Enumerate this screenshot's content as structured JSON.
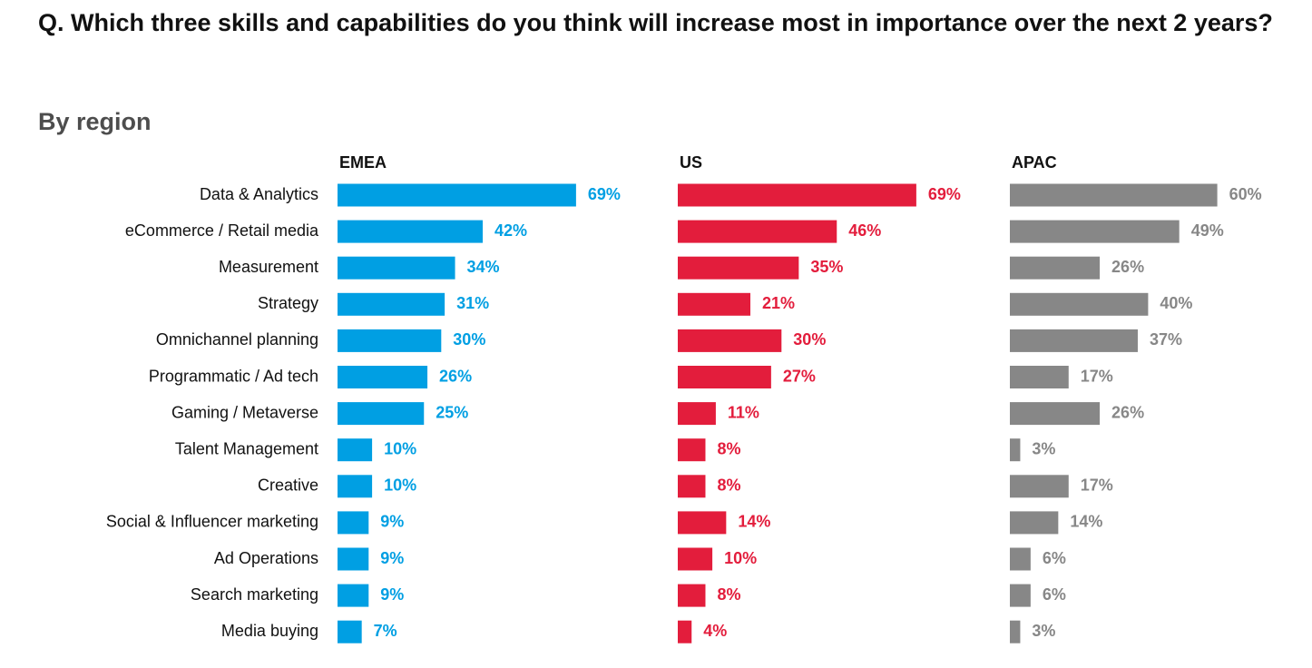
{
  "question": "Q. Which three skills and capabilities do you think will increase most in importance over the next 2 years?",
  "subtitle": "By region",
  "chart_data": {
    "type": "bar",
    "orientation": "horizontal",
    "value_suffix": "%",
    "grid": false,
    "legend": "none",
    "categories": [
      "Data & Analytics",
      "eCommerce / Retail media",
      "Measurement",
      "Strategy",
      "Omnichannel planning",
      "Programmatic / Ad tech",
      "Gaming / Metaverse",
      "Talent Management",
      "Creative",
      "Social & Influencer marketing",
      "Ad Operations",
      "Search marketing",
      "Media buying"
    ],
    "series": [
      {
        "name": "EMEA",
        "color": "#009fe3",
        "values": [
          69,
          42,
          34,
          31,
          30,
          26,
          25,
          10,
          10,
          9,
          9,
          9,
          7
        ]
      },
      {
        "name": "US",
        "color": "#e31d3c",
        "values": [
          69,
          46,
          35,
          21,
          30,
          27,
          11,
          8,
          8,
          14,
          10,
          8,
          4
        ]
      },
      {
        "name": "APAC",
        "color": "#878787",
        "values": [
          60,
          49,
          26,
          40,
          37,
          17,
          26,
          3,
          17,
          14,
          6,
          6,
          3
        ]
      }
    ]
  }
}
